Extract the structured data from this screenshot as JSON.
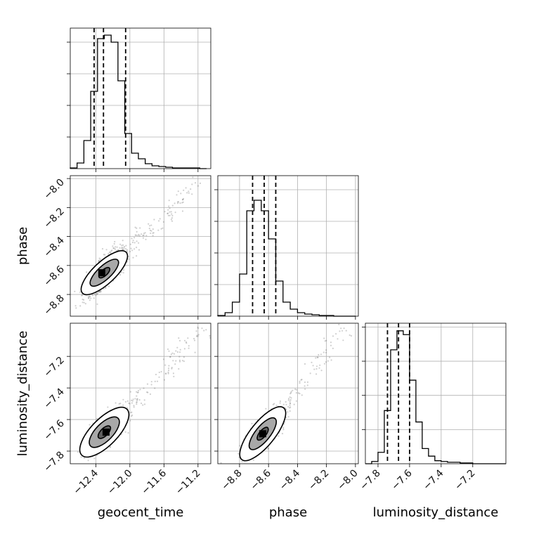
{
  "chart_data": {
    "type": "corner",
    "parameters": [
      "geocent_time",
      "phase",
      "luminosity_distance"
    ],
    "axis_labels": {
      "bottom": [
        "geocent_time",
        "phase",
        "luminosity_distance"
      ],
      "left": [
        "",
        "phase",
        "luminosity_distance"
      ]
    },
    "ranges": {
      "geocent_time": [
        -12.7,
        -11.05
      ],
      "phase": [
        -8.95,
        -7.98
      ],
      "luminosity_distance": [
        -7.88,
        -6.99
      ]
    },
    "ticks": {
      "geocent_time": [
        {
          "value": -12.4,
          "label": "−12.4"
        },
        {
          "value": -12.0,
          "label": "−12.0"
        },
        {
          "value": -11.6,
          "label": "−11.6"
        },
        {
          "value": -11.2,
          "label": "−11.2"
        }
      ],
      "phase": [
        {
          "value": -8.8,
          "label": "−8.8"
        },
        {
          "value": -8.6,
          "label": "−8.6"
        },
        {
          "value": -8.4,
          "label": "−8.4"
        },
        {
          "value": -8.2,
          "label": "−8.2"
        },
        {
          "value": -8.0,
          "label": "−8.0"
        }
      ],
      "luminosity_distance": [
        {
          "value": -7.8,
          "label": "−7.8"
        },
        {
          "value": -7.6,
          "label": "−7.6"
        },
        {
          "value": -7.4,
          "label": "−7.4"
        },
        {
          "value": -7.2,
          "label": "−7.2"
        }
      ]
    },
    "quantiles": {
      "geocent_time": [
        -12.42,
        -12.31,
        -12.05
      ],
      "phase": [
        -8.71,
        -8.63,
        -8.55
      ],
      "luminosity_distance": [
        -7.74,
        -7.67,
        -7.6
      ]
    },
    "histograms": {
      "geocent_time": {
        "bins": [
          -12.7,
          -12.62,
          -12.54,
          -12.46,
          -12.38,
          -12.3,
          -12.22,
          -12.14,
          -12.06,
          -11.98,
          -11.9,
          -11.82,
          -11.74,
          -11.66,
          -11.58,
          -11.5,
          -11.42,
          -11.34,
          -11.26,
          -11.18,
          -11.1
        ],
        "counts": [
          1,
          8,
          40,
          110,
          185,
          190,
          180,
          125,
          50,
          22,
          14,
          7,
          4,
          3,
          2,
          1,
          1,
          1,
          1,
          0
        ],
        "ylim": [
          0,
          200
        ]
      },
      "phase": {
        "bins": [
          -8.95,
          -8.9,
          -8.85,
          -8.8,
          -8.75,
          -8.7,
          -8.65,
          -8.6,
          -8.55,
          -8.5,
          -8.45,
          -8.4,
          -8.35,
          -8.3,
          -8.25,
          -8.2,
          -8.15,
          -8.1,
          -8.05,
          -8.0
        ],
        "counts": [
          1,
          5,
          20,
          60,
          150,
          165,
          150,
          110,
          50,
          20,
          10,
          5,
          3,
          2,
          1,
          1,
          0,
          0,
          0
        ],
        "ylim": [
          0,
          200
        ]
      },
      "luminosity_distance": {
        "bins": [
          -7.88,
          -7.84,
          -7.8,
          -7.76,
          -7.72,
          -7.68,
          -7.64,
          -7.6,
          -7.56,
          -7.52,
          -7.48,
          -7.44,
          -7.4,
          -7.36,
          -7.32,
          -7.28,
          -7.24,
          -7.2,
          -7.16,
          -7.12,
          -7.08,
          -7.04,
          -6.99
        ],
        "counts": [
          0,
          3,
          15,
          70,
          150,
          175,
          170,
          110,
          55,
          20,
          10,
          4,
          3,
          2,
          2,
          1,
          1,
          0,
          0,
          0,
          0,
          0
        ],
        "ylim": [
          0,
          185
        ]
      }
    },
    "pairs": {
      "phase_vs_geocent_time": {
        "x_param": "geocent_time",
        "y_param": "phase",
        "center": [
          -12.3,
          -8.65
        ],
        "peak": [
          -12.33,
          -8.65
        ],
        "contour_half_axes": [
          [
            0.06,
            0.025
          ],
          [
            0.16,
            0.055
          ],
          [
            0.26,
            0.09
          ]
        ],
        "contour_fill_grays": [
          "#606060",
          "#a8a8a8",
          "#ffffff"
        ],
        "scatter_spread": [
          0.1,
          0.07
        ],
        "tail_end": [
          -11.15,
          -8.02
        ],
        "n_points": 1400
      },
      "luminosity_distance_vs_geocent_time": {
        "x_param": "geocent_time",
        "y_param": "luminosity_distance",
        "center": [
          -12.3,
          -7.68
        ],
        "peak": [
          -12.28,
          -7.68
        ],
        "contour_half_axes": [
          [
            0.07,
            0.028
          ],
          [
            0.17,
            0.065
          ],
          [
            0.28,
            0.1
          ]
        ],
        "contour_fill_grays": [
          "#606060",
          "#a8a8a8",
          "#ffffff"
        ],
        "scatter_spread": [
          0.11,
          0.06
        ],
        "tail_end": [
          -11.1,
          -7.02
        ],
        "n_points": 1400
      },
      "luminosity_distance_vs_phase": {
        "x_param": "phase",
        "y_param": "luminosity_distance",
        "center": [
          -8.64,
          -7.69
        ],
        "peak": [
          -8.64,
          -7.69
        ],
        "contour_half_axes": [
          [
            0.04,
            0.025
          ],
          [
            0.1,
            0.055
          ],
          [
            0.17,
            0.09
          ]
        ],
        "contour_fill_grays": [
          "#606060",
          "#a8a8a8",
          "#ffffff"
        ],
        "scatter_spread": [
          0.06,
          0.06
        ],
        "tail_end": [
          -8.05,
          -7.02
        ],
        "n_points": 1400
      }
    },
    "grid": true
  }
}
